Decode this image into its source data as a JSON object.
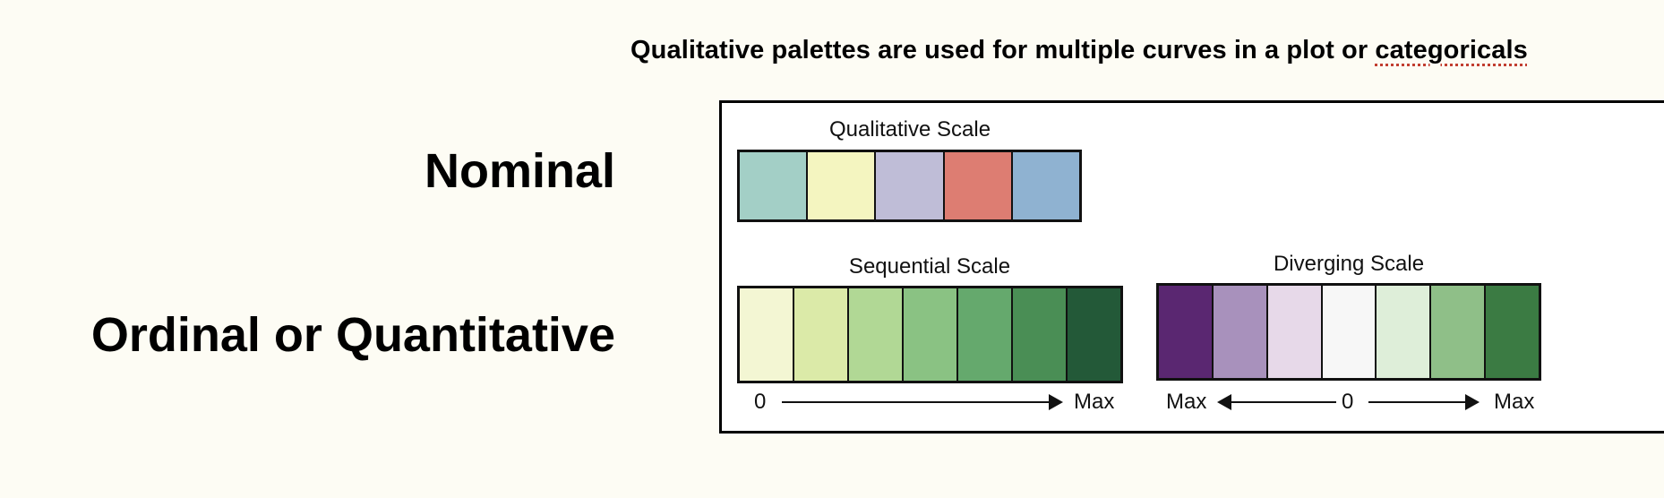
{
  "caption": {
    "prefix": "Qualitative palettes are used for multiple curves in a plot or ",
    "flagged_word": "categoricals"
  },
  "row_labels": {
    "nominal": "Nominal",
    "ordinal": "Ordinal or Quantitative"
  },
  "qualitative_scale": {
    "title": "Qualitative Scale",
    "colors": [
      "#a3cfc6",
      "#f4f5c0",
      "#bfbdd7",
      "#dd7d72",
      "#8fb2d1"
    ]
  },
  "sequential_scale": {
    "title": "Sequential Scale",
    "colors": [
      "#f3f6d3",
      "#dbeaa8",
      "#b1d895",
      "#8ac283",
      "#65a96d",
      "#4a8e55",
      "#235938"
    ],
    "start_label": "0",
    "end_label": "Max"
  },
  "diverging_scale": {
    "title": "Diverging Scale",
    "colors": [
      "#5a2771",
      "#a891bc",
      "#e7d9e9",
      "#f7f7f7",
      "#deeed9",
      "#8fbf88",
      "#3b7b43"
    ],
    "left_label": "Max",
    "center_label": "0",
    "right_label": "Max"
  }
}
